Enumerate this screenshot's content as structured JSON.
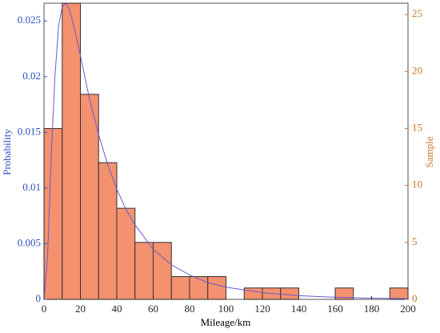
{
  "chart_data": {
    "type": "histogram",
    "xlabel": "Mileage/km",
    "ylabel": "Probability",
    "y2label": "Sample",
    "bins": [
      0,
      10,
      20,
      30,
      40,
      50,
      60,
      70,
      80,
      90,
      100,
      110,
      120,
      130,
      140,
      150,
      160,
      170,
      180,
      190,
      200
    ],
    "values": [
      15,
      26,
      18,
      12,
      8,
      5,
      5,
      2,
      2,
      2,
      0,
      1,
      1,
      1,
      0,
      0,
      1,
      0,
      0,
      1
    ],
    "color": "#f4916e",
    "edge_color": "#333333",
    "axis": "y2",
    "line": {
      "x": [
        0,
        2,
        4,
        6,
        8,
        10,
        12,
        14,
        16,
        18,
        20,
        25,
        30,
        35,
        40,
        45,
        50,
        60,
        70,
        80,
        90,
        100,
        120,
        140,
        160,
        180,
        200
      ],
      "values": [
        0,
        0.004,
        0.013,
        0.02,
        0.0245,
        0.0263,
        0.0266,
        0.026,
        0.0248,
        0.0234,
        0.0219,
        0.018,
        0.0148,
        0.0121,
        0.0099,
        0.0081,
        0.0067,
        0.0045,
        0.0031,
        0.0022,
        0.0015,
        0.0011,
        0.0006,
        0.00033,
        0.00019,
        0.00011,
        7e-05
      ],
      "color": "#6a5acd",
      "axis": "y"
    },
    "xlim": [
      0,
      200
    ],
    "xticks": [
      0,
      20,
      40,
      60,
      80,
      100,
      120,
      140,
      160,
      180,
      200
    ],
    "ylim": [
      0,
      0.0266
    ],
    "yticks": [
      0,
      0.005,
      0.01,
      0.015,
      0.02,
      0.025
    ],
    "y2lim": [
      0,
      26
    ],
    "y2ticks": [
      0,
      5,
      10,
      15,
      20,
      25
    ],
    "ylabel_color": "#2b4fc2",
    "y2label_color": "#c8782a"
  }
}
